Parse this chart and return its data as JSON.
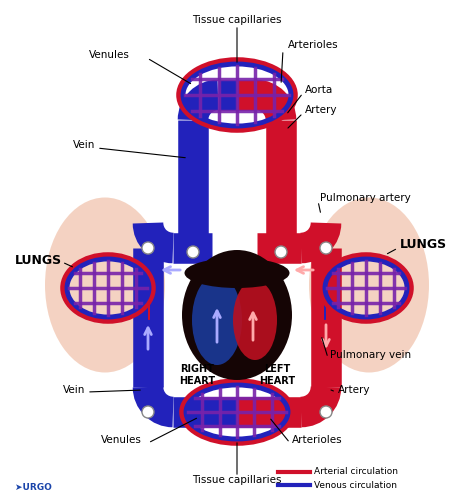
{
  "bg_color": "#ffffff",
  "arterial_color": "#d0102a",
  "venous_color": "#2222bb",
  "capillary_color": "#7722aa",
  "lung_color": "#f0c0a8",
  "heart_dark": "#150505",
  "heart_blue": "#1a3a9a",
  "heart_red": "#bb1020",
  "urgo_color": "#1a44aa",
  "labels": {
    "tissue_cap_top": "Tissue capillaries",
    "tissue_cap_bot": "Tissue capillaries",
    "venules_top": "Venules",
    "arterioles_top": "Arterioles",
    "aorta": "Aorta",
    "artery_top": "Artery",
    "vein_top": "Vein",
    "pulmonary_artery": "Pulmonary artery",
    "pulmonary_vein": "Pulmonary vein",
    "lungs_left": "LUNGS",
    "lungs_right": "LUNGS",
    "right_heart": "RIGHT\nHEART",
    "left_heart": "LEFT\nHEART",
    "vein_bot": "Vein",
    "artery_bot": "Artery",
    "venules_bot": "Venules",
    "arterioles_bot": "Arterioles",
    "arterial_legend": "Arterial circulation",
    "venous_legend": "Venous circulation"
  }
}
